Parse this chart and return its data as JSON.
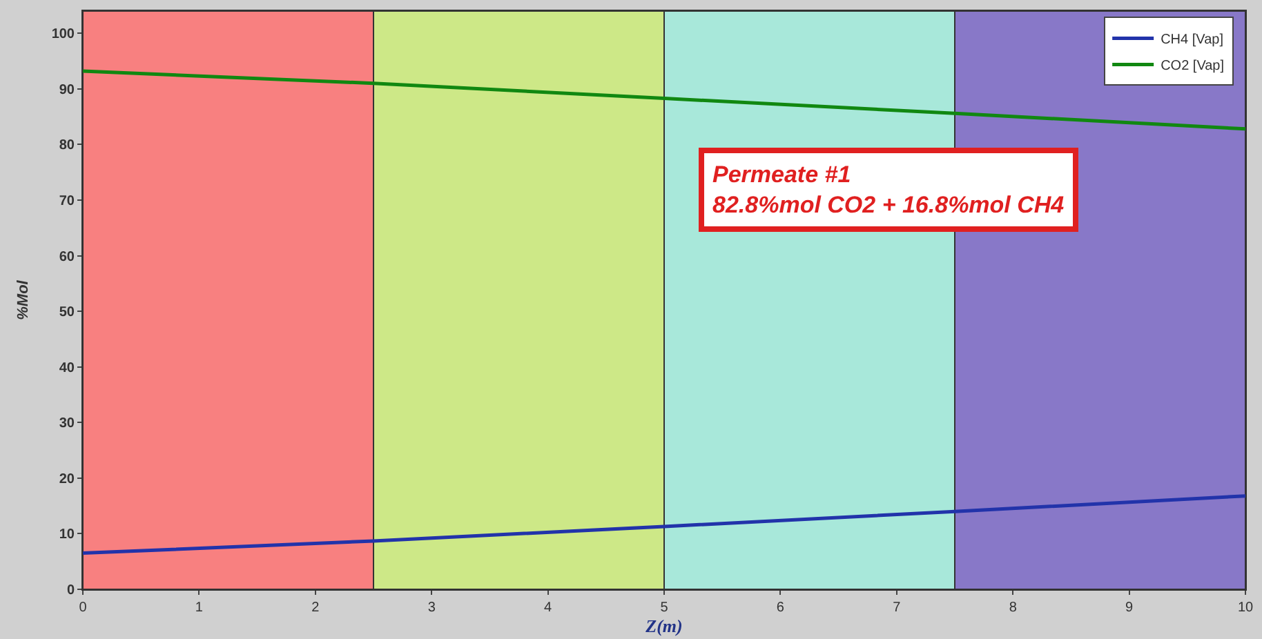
{
  "chart_data": {
    "type": "line",
    "xlabel": "Z(m)",
    "ylabel": "%Mol",
    "x": [
      0,
      2.5,
      5,
      7.5,
      10
    ],
    "series": [
      {
        "name": "CH4 [Vap]",
        "color": "#2233aa",
        "values": [
          6.5,
          8.7,
          11.3,
          14,
          16.8
        ]
      },
      {
        "name": "CO2 [Vap]",
        "color": "#118811",
        "values": [
          93.2,
          91,
          88.3,
          85.6,
          82.8
        ]
      }
    ],
    "bands": [
      {
        "axis": "x",
        "from": 0,
        "to": 2.5,
        "color": "#f88080"
      },
      {
        "axis": "x",
        "from": 2.5,
        "to": 5,
        "color": "#cde887"
      },
      {
        "axis": "x",
        "from": 5,
        "to": 7.5,
        "color": "#a8e8da"
      },
      {
        "axis": "x",
        "from": 7.5,
        "to": 10,
        "color": "#8878c8"
      }
    ],
    "annotations": [
      "Permeate #1\n82.8%mol CO2 + 16.8%mol CH4"
    ],
    "xlim": [
      0,
      10
    ],
    "xticks": [
      0,
      1,
      2,
      3,
      4,
      5,
      6,
      7,
      8,
      9,
      10
    ],
    "ylim": [
      0,
      104
    ],
    "yticks": [
      0,
      10,
      20,
      30,
      40,
      50,
      60,
      70,
      80,
      90,
      100
    ],
    "grid": false,
    "legend": "top right",
    "marker": "none",
    "line_style": "solid"
  }
}
